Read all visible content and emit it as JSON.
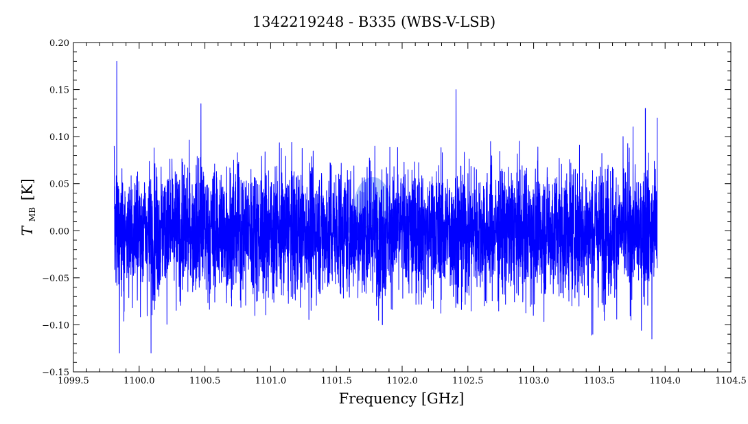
{
  "chart_data": {
    "type": "line",
    "title": "1342219248 - B335 (WBS-V-LSB)",
    "xlabel": "Frequency [GHz]",
    "ylabel_main": "T",
    "ylabel_sub": "MB",
    "ylabel_unit": "[K]",
    "xlim": [
      1099.5,
      1104.5
    ],
    "ylim": [
      -0.15,
      0.2
    ],
    "x_ticks": [
      "1099.5",
      "1100.0",
      "1100.5",
      "1101.0",
      "1101.5",
      "1102.0",
      "1102.5",
      "1103.0",
      "1103.5",
      "1104.0",
      "1104.5"
    ],
    "y_ticks": [
      "−0.15",
      "−0.10",
      "−0.05",
      "0.00",
      "0.05",
      "0.10",
      "0.15",
      "0.20"
    ],
    "grid": false,
    "line_color": "#0000ff",
    "watermark_text": "WISH",
    "watermark_color": "#2f6fe0",
    "series": [
      {
        "x_start": 1099.81,
        "x_end": 1103.94,
        "noise_rms_k": 0.035,
        "envelope": [
          [
            1099.81,
            0.09
          ],
          [
            1099.83,
            0.18
          ],
          [
            1099.85,
            -0.13
          ],
          [
            1100.09,
            -0.13
          ],
          [
            1100.47,
            0.135
          ],
          [
            1101.85,
            -0.1
          ],
          [
            1102.41,
            0.15
          ],
          [
            1102.43,
            -0.06
          ],
          [
            1103.45,
            -0.11
          ],
          [
            1103.85,
            0.13
          ],
          [
            1103.9,
            -0.115
          ],
          [
            1103.94,
            0.12
          ]
        ]
      }
    ]
  }
}
